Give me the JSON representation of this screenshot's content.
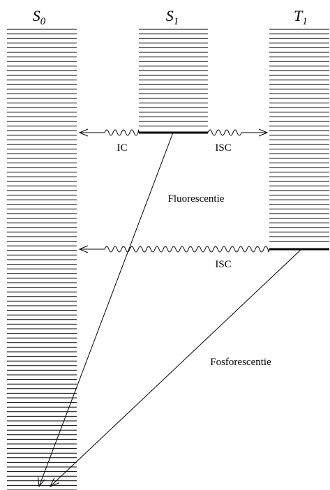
{
  "states": [
    {
      "id": "s0",
      "symbol": "S",
      "subscript": "0"
    },
    {
      "id": "s1",
      "symbol": "S",
      "subscript": "1"
    },
    {
      "id": "t1",
      "symbol": "T",
      "subscript": "1"
    }
  ],
  "transitions": {
    "ic": "IC",
    "isc_upper": "ISC",
    "fluorescence": "Fluorescentie",
    "isc_lower": "ISC",
    "phosphorescence": "Fosforescentie"
  }
}
